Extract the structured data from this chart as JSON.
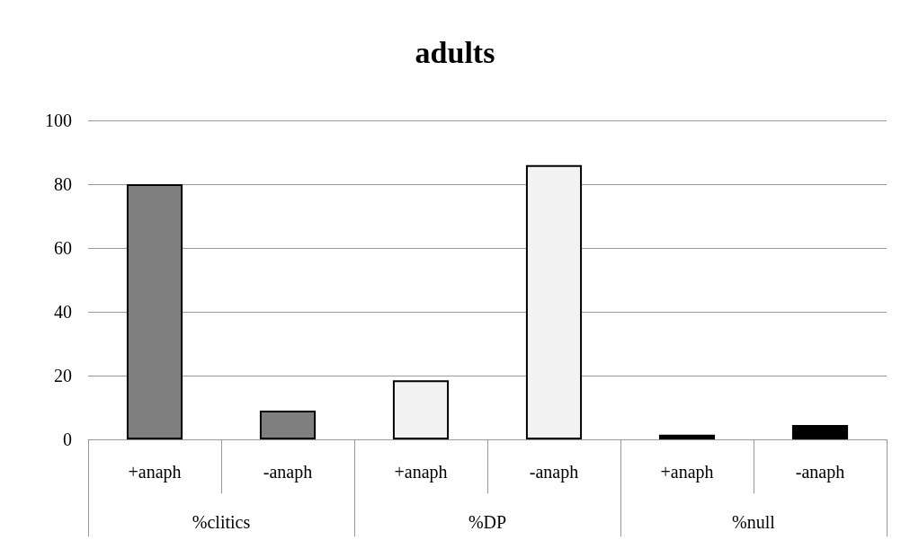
{
  "chart_data": {
    "type": "bar",
    "title": "adults",
    "categories": [
      "+anaph",
      "-anaph",
      "+anaph",
      "-anaph",
      "+anaph",
      "-anaph"
    ],
    "values": [
      80,
      9,
      18.5,
      86,
      1.5,
      4.5
    ],
    "colors": [
      "#7f7f7f",
      "#7f7f7f",
      "#f2f2f2",
      "#f2f2f2",
      "#000000",
      "#000000"
    ],
    "annotations": [
      "%clitics",
      "%DP",
      "%null"
    ],
    "ylim": [
      0,
      100
    ],
    "yticks": [
      0,
      20,
      40,
      60,
      80,
      100
    ],
    "grid": "y"
  }
}
